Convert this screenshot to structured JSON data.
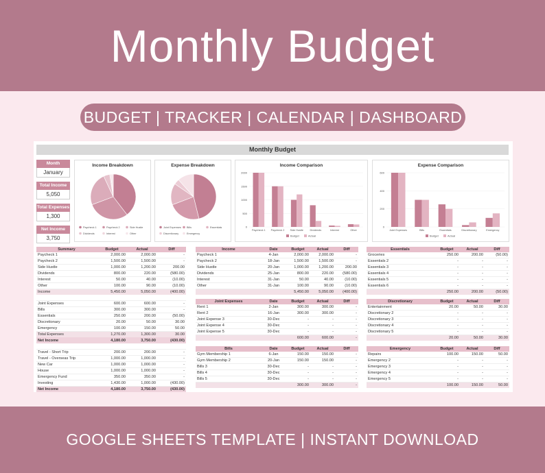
{
  "banner_title": "Monthly Budget",
  "pill_text": "BUDGET | TRACKER | CALENDAR | DASHBOARD",
  "footer_text": "GOOGLE SHEETS TEMPLATE | INSTANT DOWNLOAD",
  "sheet": {
    "title": "Monthly Budget",
    "kpis": [
      {
        "label": "Month",
        "value": "January"
      },
      {
        "label": "Total Income",
        "value": "5,050"
      },
      {
        "label": "Total Expenses",
        "value": "1,300"
      },
      {
        "label": "Net Income",
        "value": "3,750"
      }
    ]
  },
  "colors": {
    "brand": "#b37a8c",
    "accent": "#c9899b",
    "header": "#e7bfcb",
    "bar_budget": "#c47f93",
    "bar_actual": "#e3b4c2"
  },
  "chart_data": [
    {
      "type": "pie",
      "title": "Income Breakdown",
      "categories": [
        "Paycheck 1",
        "Paycheck 2",
        "Side Hustle",
        "Dividends",
        "Interest",
        "Other"
      ],
      "values": [
        2000,
        1500,
        1200,
        220,
        40,
        90
      ],
      "colors": [
        "#c27f93",
        "#cf95a6",
        "#dbacba",
        "#e6c3cd",
        "#efd6dd",
        "#f6e7eb"
      ]
    },
    {
      "type": "pie",
      "title": "Expense Breakdown",
      "categories": [
        "Joint Expenses",
        "Bills",
        "Essentials",
        "Discretionary",
        "Emergency"
      ],
      "values": [
        600,
        300,
        200,
        50,
        150
      ],
      "colors": [
        "#c27f93",
        "#d399aa",
        "#e1b6c2",
        "#ecccd5",
        "#f5e3e8"
      ]
    },
    {
      "type": "bar",
      "title": "Income Comparison",
      "categories": [
        "Paycheck 1",
        "Paycheck 2",
        "Side Hustle",
        "Dividends",
        "Interest",
        "Other"
      ],
      "series": [
        {
          "name": "Budget",
          "values": [
            2000,
            1500,
            1000,
            800,
            50,
            100
          ]
        },
        {
          "name": "Actual",
          "values": [
            2000,
            1500,
            1200,
            220,
            40,
            90
          ]
        }
      ],
      "yticks": [
        "2000",
        "1500",
        "1000",
        "500",
        "0"
      ],
      "ylim": [
        0,
        2000
      ]
    },
    {
      "type": "bar",
      "title": "Expense Comparison",
      "categories": [
        "Joint Expenses",
        "Bills",
        "Essentials",
        "Discretionary",
        "Emergency"
      ],
      "series": [
        {
          "name": "Budget",
          "values": [
            600,
            300,
            250,
            20,
            100
          ]
        },
        {
          "name": "Actual",
          "values": [
            600,
            300,
            200,
            50,
            150
          ]
        }
      ],
      "yticks": [
        "600",
        "400",
        "200",
        "0"
      ],
      "ylim": [
        0,
        600
      ]
    }
  ],
  "tables": {
    "summary": {
      "header": [
        "Summary",
        "Budget",
        "Actual",
        "Diff"
      ],
      "rows": [
        {
          "cells": [
            "Paycheck 1",
            "2,000.00",
            "2,000.00",
            "-"
          ]
        },
        {
          "cells": [
            "Paycheck 2",
            "1,500.00",
            "1,500.00",
            "-"
          ]
        },
        {
          "cells": [
            "Side Hustle",
            "1,000.00",
            "1,200.00",
            "200.00"
          ]
        },
        {
          "cells": [
            "Dividends",
            "800.00",
            "220.00",
            "(580.00)"
          ]
        },
        {
          "cells": [
            "Interest",
            "50.00",
            "40.00",
            "(10.00)"
          ]
        },
        {
          "cells": [
            "Other",
            "100.00",
            "90.00",
            "(10.00)"
          ]
        },
        {
          "cells": [
            "Income",
            "5,450.00",
            "5,050.00",
            "(400.00)"
          ],
          "style": "t"
        },
        {
          "cells": [
            "",
            "",
            "",
            ""
          ]
        },
        {
          "cells": [
            "Joint Expenses",
            "600.00",
            "600.00",
            "-"
          ]
        },
        {
          "cells": [
            "Bills",
            "300.00",
            "300.00",
            "-"
          ]
        },
        {
          "cells": [
            "Essentials",
            "250.00",
            "200.00",
            "(50.00)"
          ]
        },
        {
          "cells": [
            "Discretionary",
            "20.00",
            "50.00",
            "30.00"
          ]
        },
        {
          "cells": [
            "Emergency",
            "100.00",
            "150.00",
            "50.00"
          ]
        },
        {
          "cells": [
            "Total Expenses",
            "1,270.00",
            "1,300.00",
            "30.00"
          ],
          "style": "t"
        },
        {
          "cells": [
            "Net Income",
            "4,180.00",
            "3,750.00",
            "(430.00)"
          ],
          "style": "tt"
        },
        {
          "cells": [
            "",
            "",
            "",
            ""
          ]
        },
        {
          "cells": [
            "Travel - Short Trip",
            "200.00",
            "200.00",
            "-"
          ]
        },
        {
          "cells": [
            "Travel - Overseas Trip",
            "1,000.00",
            "1,000.00",
            "-"
          ]
        },
        {
          "cells": [
            "New Car",
            "1,000.00",
            "1,000.00",
            "-"
          ]
        },
        {
          "cells": [
            "House",
            "1,000.00",
            "1,000.00",
            "-"
          ]
        },
        {
          "cells": [
            "Emergency Fund",
            "350.00",
            "350.00",
            "-"
          ]
        },
        {
          "cells": [
            "Investing",
            "1,430.00",
            "1,000.00",
            "(430.00)"
          ]
        },
        {
          "cells": [
            "Net Income",
            "4,180.00",
            "3,750.00",
            "(430.00)"
          ],
          "style": "tt"
        }
      ]
    },
    "income": {
      "header": [
        "Income",
        "Date",
        "Budget",
        "Actual",
        "Diff"
      ],
      "rows": [
        {
          "cells": [
            "Paycheck 1",
            "4-Jan",
            "2,000.00",
            "2,000.00",
            "-"
          ]
        },
        {
          "cells": [
            "Paycheck 2",
            "18-Jan",
            "1,500.00",
            "1,500.00",
            "-"
          ]
        },
        {
          "cells": [
            "Side Hustle",
            "20-Jan",
            "1,000.00",
            "1,200.00",
            "200.00"
          ]
        },
        {
          "cells": [
            "Dividends",
            "25-Jan",
            "800.00",
            "220.00",
            "(580.00)"
          ]
        },
        {
          "cells": [
            "Interest",
            "31-Jan",
            "50.00",
            "40.00",
            "(10.00)"
          ]
        },
        {
          "cells": [
            "Other",
            "31-Jan",
            "100.00",
            "90.00",
            "(10.00)"
          ]
        },
        {
          "cells": [
            "",
            "",
            "5,450.00",
            "5,050.00",
            "(400.00)"
          ],
          "style": "t"
        }
      ]
    },
    "joint": {
      "header": [
        "Joint Expenses",
        "Date",
        "Budget",
        "Actual",
        "Diff"
      ],
      "rows": [
        {
          "cells": [
            "Rent 1",
            "2-Jan",
            "300.00",
            "300.00",
            "-"
          ]
        },
        {
          "cells": [
            "Rent 2",
            "16-Jan",
            "300.00",
            "300.00",
            "-"
          ]
        },
        {
          "cells": [
            "Joint Expense 3",
            "30-Dec",
            "-",
            "-",
            "-"
          ]
        },
        {
          "cells": [
            "Joint Expense 4",
            "30-Dec",
            "-",
            "-",
            "-"
          ]
        },
        {
          "cells": [
            "Joint Expense 5",
            "30-Dec",
            "-",
            "-",
            "-"
          ]
        },
        {
          "cells": [
            "",
            "",
            "600.00",
            "600.00",
            "-"
          ],
          "style": "t"
        }
      ]
    },
    "bills": {
      "header": [
        "Bills",
        "Date",
        "Budget",
        "Actual",
        "Diff"
      ],
      "rows": [
        {
          "cells": [
            "Gym Membership 1",
            "6-Jan",
            "150.00",
            "150.00",
            "-"
          ]
        },
        {
          "cells": [
            "Gym Membership 2",
            "20-Jan",
            "150.00",
            "150.00",
            "-"
          ]
        },
        {
          "cells": [
            "Bills 3",
            "30-Dec",
            "-",
            "-",
            "-"
          ]
        },
        {
          "cells": [
            "Bills 4",
            "30-Dec",
            "-",
            "-",
            "-"
          ]
        },
        {
          "cells": [
            "Bills 5",
            "30-Dec",
            "-",
            "-",
            "-"
          ]
        },
        {
          "cells": [
            "",
            "",
            "300.00",
            "300.00",
            "-"
          ],
          "style": "t"
        }
      ]
    },
    "essentials": {
      "header": [
        "Essentials",
        "Budget",
        "Actual",
        "Diff"
      ],
      "rows": [
        {
          "cells": [
            "Groceries",
            "250.00",
            "200.00",
            "(50.00)"
          ]
        },
        {
          "cells": [
            "Essentials 2",
            "-",
            "-",
            "-"
          ]
        },
        {
          "cells": [
            "Essentials 3",
            "-",
            "-",
            "-"
          ]
        },
        {
          "cells": [
            "Essentials 4",
            "-",
            "-",
            "-"
          ]
        },
        {
          "cells": [
            "Essentials 5",
            "-",
            "-",
            "-"
          ]
        },
        {
          "cells": [
            "Essentials 6",
            "-",
            "-",
            "-"
          ]
        },
        {
          "cells": [
            "",
            "250.00",
            "200.00",
            "(50.00)"
          ],
          "style": "t"
        }
      ]
    },
    "discretionary": {
      "header": [
        "Discretionary",
        "Budget",
        "Actual",
        "Diff"
      ],
      "rows": [
        {
          "cells": [
            "Entertainment",
            "20.00",
            "50.00",
            "30.00"
          ]
        },
        {
          "cells": [
            "Discretionary 2",
            "-",
            "-",
            "-"
          ]
        },
        {
          "cells": [
            "Discretionary 3",
            "-",
            "-",
            "-"
          ]
        },
        {
          "cells": [
            "Discretionary 4",
            "-",
            "-",
            "-"
          ]
        },
        {
          "cells": [
            "Discretionary 5",
            "-",
            "-",
            "-"
          ]
        },
        {
          "cells": [
            "",
            "20.00",
            "50.00",
            "30.00"
          ],
          "style": "t"
        }
      ]
    },
    "emergency": {
      "header": [
        "Emergency",
        "Budget",
        "Actual",
        "Diff"
      ],
      "rows": [
        {
          "cells": [
            "Repairs",
            "100.00",
            "150.00",
            "50.00"
          ]
        },
        {
          "cells": [
            "Emergency 2",
            "-",
            "-",
            "-"
          ]
        },
        {
          "cells": [
            "Emergency 3",
            "-",
            "-",
            "-"
          ]
        },
        {
          "cells": [
            "Emergency 4",
            "-",
            "-",
            "-"
          ]
        },
        {
          "cells": [
            "Emergency 5",
            "-",
            "-",
            "-"
          ]
        },
        {
          "cells": [
            "",
            "100.00",
            "150.00",
            "50.00"
          ],
          "style": "t"
        }
      ]
    }
  }
}
